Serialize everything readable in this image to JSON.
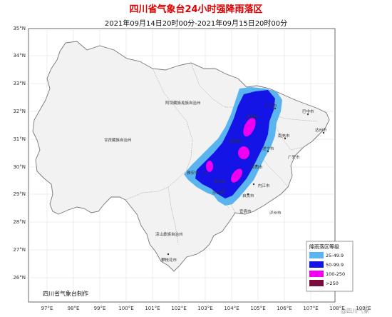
{
  "title": "四川省气象台24小时强降雨落区",
  "subtitle": "2021年09月14日20时00分-2021年09月15日20时00分",
  "latitude_labels": [
    "35°N",
    "34°N",
    "33°N",
    "32°N",
    "31°N",
    "30°N",
    "29°N",
    "28°N",
    "27°N",
    "26°N"
  ],
  "longitude_labels": [
    "97°E",
    "98°E",
    "99°E",
    "100°E",
    "101°E",
    "102°E",
    "103°E",
    "104°E",
    "105°E",
    "106°E",
    "107°E",
    "108°E",
    "109°E"
  ],
  "places": {
    "aba": "阿坝藏族羌族自治州",
    "ganzi": "甘孜藏族自治州",
    "liangshan": "凉山彝族自治州",
    "panzhihua": "攀枝花市",
    "guangyuan": "广元市",
    "bazhong": "巴中市",
    "dazhou": "达州市",
    "nanchong": "南充市",
    "suining": "遂宁市",
    "ziyang": "资阳市",
    "neijiang": "内江市",
    "zigong": "自贡市",
    "yibin": "宜宾市",
    "luzhou": "泸州市",
    "leshan": "乐山市",
    "yaan": "雅安市",
    "meishan": "眉山市",
    "guangan": "广安市",
    "mianyang": "绵阳市",
    "deyang": "德阳市"
  },
  "legend": {
    "title": "降雨落区等级",
    "items": [
      {
        "label": "25-49.9",
        "color": "#5ab4f0"
      },
      {
        "label": "50-99.9",
        "color": "#1414e6"
      },
      {
        "label": "100-250",
        "color": "#f000f0"
      },
      {
        "label": ">250",
        "color": "#7a0a3c"
      }
    ]
  },
  "credit": "四川省气象台制作",
  "watermark": "@四川气象",
  "colors": {
    "sea_bg": "#ffffff",
    "province_fill": "#f2f2f2",
    "border": "#888888",
    "grid": "#bbbbbb"
  }
}
